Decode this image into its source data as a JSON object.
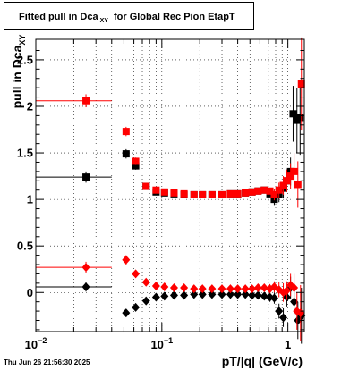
{
  "title_prefix": "Fitted pull in Dca",
  "title_subscript": "XY",
  "title_suffix": "for Global Rec Pion EtapT",
  "ylabel_main": "pull in Dca",
  "ylabel_sub": "XY",
  "xlabel": "pT/|q| (GeV/c)",
  "datestamp": "Thu Jun 26 21:56:30 2025",
  "colors": {
    "black": "#000000",
    "red": "#ff0000",
    "grid": "#000000"
  },
  "chart_data": {
    "type": "scatter",
    "xscale": "log",
    "xlim": [
      0.01,
      1.35
    ],
    "ylim": [
      -0.42,
      2.72
    ],
    "grid": true,
    "x_tick_labels": [
      {
        "value": 0.01,
        "base": "10",
        "exp": "−2"
      },
      {
        "value": 0.1,
        "base": "10",
        "exp": "−1"
      },
      {
        "value": 1,
        "base": "1",
        "exp": ""
      }
    ],
    "y_tick_labels": [
      {
        "value": 0,
        "text": "0"
      },
      {
        "value": 0.5,
        "text": "0.5"
      },
      {
        "value": 1,
        "text": "1"
      },
      {
        "value": 1.5,
        "text": "1.5"
      },
      {
        "value": 2,
        "text": "2"
      },
      {
        "value": 2.5,
        "text": "2.5"
      }
    ],
    "series": [
      {
        "color": "#000000",
        "marker": "square",
        "points": [
          {
            "x": 0.025,
            "y": 1.24,
            "xerr": [
              0.01,
              0.04
            ],
            "yerr": 0.06
          },
          {
            "x": 0.052,
            "y": 1.49,
            "yerr": 0.05
          },
          {
            "x": 0.062,
            "y": 1.36,
            "yerr": 0.04
          },
          {
            "x": 0.075,
            "y": 1.14,
            "yerr": 0.03
          },
          {
            "x": 0.09,
            "y": 1.08,
            "yerr": 0.03
          },
          {
            "x": 0.105,
            "y": 1.07
          },
          {
            "x": 0.125,
            "y": 1.06
          },
          {
            "x": 0.15,
            "y": 1.05
          },
          {
            "x": 0.18,
            "y": 1.05
          },
          {
            "x": 0.21,
            "y": 1.05
          },
          {
            "x": 0.25,
            "y": 1.05
          },
          {
            "x": 0.3,
            "y": 1.05
          },
          {
            "x": 0.35,
            "y": 1.06
          },
          {
            "x": 0.4,
            "y": 1.06
          },
          {
            "x": 0.46,
            "y": 1.07
          },
          {
            "x": 0.52,
            "y": 1.08
          },
          {
            "x": 0.58,
            "y": 1.09
          },
          {
            "x": 0.65,
            "y": 1.1
          },
          {
            "x": 0.72,
            "y": 1.06
          },
          {
            "x": 0.78,
            "y": 1.0,
            "yerr": 0.06
          },
          {
            "x": 0.85,
            "y": 1.05,
            "yerr": 0.08
          },
          {
            "x": 0.92,
            "y": 1.12,
            "yerr": 0.1
          },
          {
            "x": 0.98,
            "y": 1.2,
            "yerr": 0.12
          },
          {
            "x": 1.05,
            "y": 1.3,
            "yerr": 0.15
          },
          {
            "x": 1.1,
            "y": 1.92,
            "yerr": 0.3
          },
          {
            "x": 1.18,
            "y": 1.85,
            "yerr": 0.35
          },
          {
            "x": 1.25,
            "y": 1.88,
            "yerr": 0.4
          }
        ]
      },
      {
        "color": "#ff0000",
        "marker": "square",
        "points": [
          {
            "x": 0.025,
            "y": 2.06,
            "xerr": [
              0.01,
              0.04
            ],
            "yerr": 0.07
          },
          {
            "x": 0.052,
            "y": 1.73,
            "yerr": 0.05
          },
          {
            "x": 0.062,
            "y": 1.41,
            "yerr": 0.04
          },
          {
            "x": 0.075,
            "y": 1.14,
            "yerr": 0.03
          },
          {
            "x": 0.09,
            "y": 1.1,
            "yerr": 0.03
          },
          {
            "x": 0.105,
            "y": 1.08
          },
          {
            "x": 0.125,
            "y": 1.07
          },
          {
            "x": 0.15,
            "y": 1.06
          },
          {
            "x": 0.18,
            "y": 1.05
          },
          {
            "x": 0.21,
            "y": 1.05
          },
          {
            "x": 0.25,
            "y": 1.05
          },
          {
            "x": 0.3,
            "y": 1.05
          },
          {
            "x": 0.35,
            "y": 1.06
          },
          {
            "x": 0.4,
            "y": 1.06
          },
          {
            "x": 0.46,
            "y": 1.07
          },
          {
            "x": 0.52,
            "y": 1.08
          },
          {
            "x": 0.58,
            "y": 1.09
          },
          {
            "x": 0.65,
            "y": 1.1
          },
          {
            "x": 0.72,
            "y": 1.09
          },
          {
            "x": 0.78,
            "y": 1.05,
            "yerr": 0.06
          },
          {
            "x": 0.85,
            "y": 1.1,
            "yerr": 0.08
          },
          {
            "x": 0.92,
            "y": 1.15,
            "yerr": 0.1
          },
          {
            "x": 0.98,
            "y": 1.2,
            "yerr": 0.12
          },
          {
            "x": 1.05,
            "y": 1.25,
            "yerr": 0.14
          },
          {
            "x": 1.12,
            "y": 1.3,
            "yerr": 0.2
          },
          {
            "x": 1.2,
            "y": 1.16,
            "yerr": 0.25
          },
          {
            "x": 1.28,
            "y": 2.24,
            "yerr": 0.5
          }
        ]
      },
      {
        "color": "#000000",
        "marker": "diamond",
        "points": [
          {
            "x": 0.025,
            "y": 0.06,
            "xerr": [
              0.01,
              0.04
            ],
            "yerr": 0.05
          },
          {
            "x": 0.052,
            "y": -0.22,
            "yerr": 0.04
          },
          {
            "x": 0.062,
            "y": -0.16,
            "yerr": 0.03
          },
          {
            "x": 0.075,
            "y": -0.09,
            "yerr": 0.03
          },
          {
            "x": 0.09,
            "y": -0.05
          },
          {
            "x": 0.105,
            "y": -0.04
          },
          {
            "x": 0.125,
            "y": -0.03
          },
          {
            "x": 0.15,
            "y": -0.03
          },
          {
            "x": 0.18,
            "y": -0.02
          },
          {
            "x": 0.21,
            "y": -0.02
          },
          {
            "x": 0.25,
            "y": -0.02
          },
          {
            "x": 0.3,
            "y": -0.02
          },
          {
            "x": 0.35,
            "y": -0.02
          },
          {
            "x": 0.4,
            "y": -0.02
          },
          {
            "x": 0.46,
            "y": -0.02
          },
          {
            "x": 0.52,
            "y": -0.03
          },
          {
            "x": 0.58,
            "y": -0.03
          },
          {
            "x": 0.65,
            "y": -0.04
          },
          {
            "x": 0.72,
            "y": -0.05,
            "yerr": 0.05
          },
          {
            "x": 0.78,
            "y": -0.06,
            "yerr": 0.06
          },
          {
            "x": 0.85,
            "y": -0.2,
            "yerr": 0.08
          },
          {
            "x": 0.92,
            "y": -0.27,
            "yerr": 0.1
          },
          {
            "x": 0.98,
            "y": -0.05,
            "yerr": 0.1
          },
          {
            "x": 1.05,
            "y": 0.05,
            "yerr": 0.12
          },
          {
            "x": 1.12,
            "y": -0.1,
            "yerr": 0.15
          },
          {
            "x": 1.2,
            "y": -0.3,
            "yerr": 0.2
          },
          {
            "x": 1.28,
            "y": -0.25,
            "yerr": 0.3
          }
        ]
      },
      {
        "color": "#ff0000",
        "marker": "diamond",
        "points": [
          {
            "x": 0.025,
            "y": 0.27,
            "xerr": [
              0.01,
              0.04
            ],
            "yerr": 0.06
          },
          {
            "x": 0.052,
            "y": 0.35,
            "yerr": 0.05
          },
          {
            "x": 0.062,
            "y": 0.2,
            "yerr": 0.04
          },
          {
            "x": 0.075,
            "y": 0.11,
            "yerr": 0.03
          },
          {
            "x": 0.09,
            "y": 0.07
          },
          {
            "x": 0.105,
            "y": 0.06
          },
          {
            "x": 0.125,
            "y": 0.05
          },
          {
            "x": 0.15,
            "y": 0.05
          },
          {
            "x": 0.18,
            "y": 0.04
          },
          {
            "x": 0.21,
            "y": 0.04
          },
          {
            "x": 0.25,
            "y": 0.04
          },
          {
            "x": 0.3,
            "y": 0.04
          },
          {
            "x": 0.35,
            "y": 0.04
          },
          {
            "x": 0.4,
            "y": 0.04
          },
          {
            "x": 0.46,
            "y": 0.04
          },
          {
            "x": 0.52,
            "y": 0.04
          },
          {
            "x": 0.58,
            "y": 0.05
          },
          {
            "x": 0.65,
            "y": 0.05
          },
          {
            "x": 0.72,
            "y": 0.04,
            "yerr": 0.05
          },
          {
            "x": 0.78,
            "y": 0.06,
            "yerr": 0.06
          },
          {
            "x": 0.85,
            "y": 0.03,
            "yerr": 0.08
          },
          {
            "x": 0.92,
            "y": 0.0,
            "yerr": 0.1
          },
          {
            "x": 0.98,
            "y": 0.02,
            "yerr": 0.1
          },
          {
            "x": 1.05,
            "y": 0.08,
            "yerr": 0.12
          },
          {
            "x": 1.12,
            "y": 0.05,
            "yerr": 0.15
          },
          {
            "x": 1.18,
            "y": -0.2,
            "yerr": 0.2
          },
          {
            "x": 1.26,
            "y": -0.22,
            "yerr": 0.3
          }
        ]
      }
    ]
  }
}
